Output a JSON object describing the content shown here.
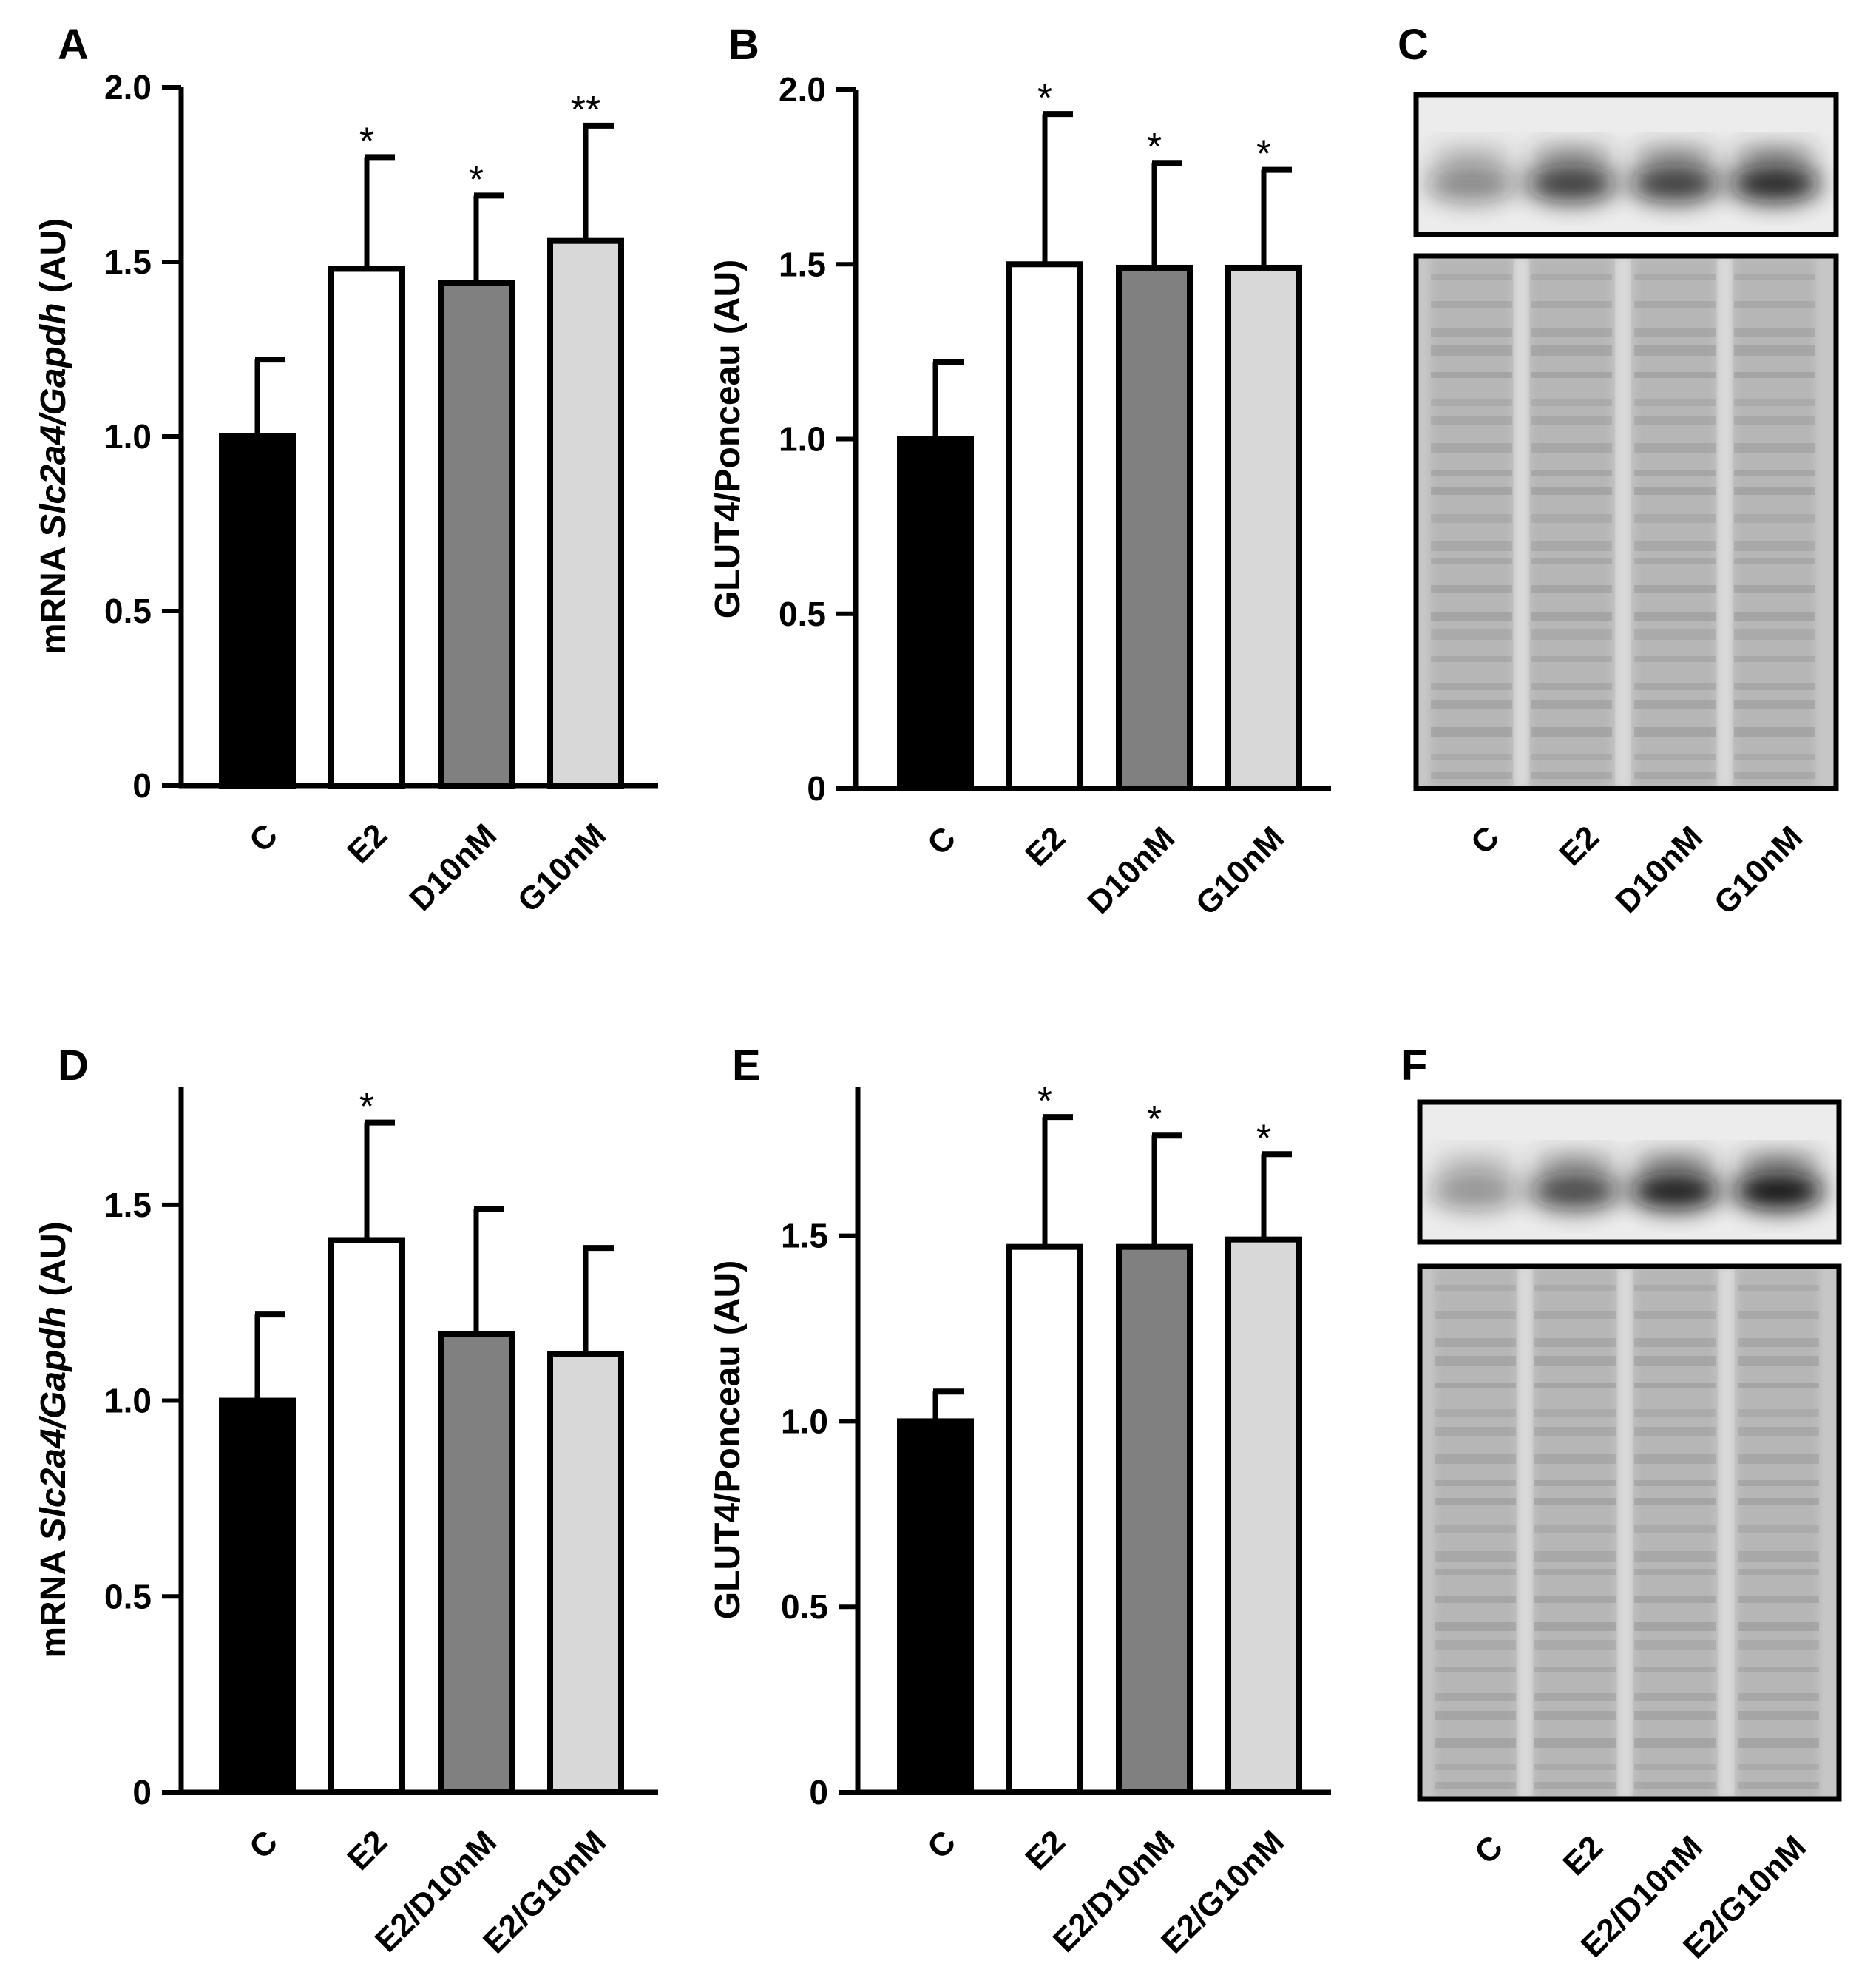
{
  "panels": [
    {
      "letter": "A"
    },
    {
      "letter": "B"
    },
    {
      "letter": "C"
    },
    {
      "letter": "D"
    },
    {
      "letter": "E"
    },
    {
      "letter": "F"
    }
  ],
  "colors": {
    "C": "#000000",
    "E2": "#ffffff",
    "D": "#808080",
    "G": "#d8d8d8",
    "axis": "#000000",
    "blot_band": "#1a1a1a",
    "blot_ponceau": "#bdbdbd"
  },
  "chart_data": [
    {
      "panel": "A",
      "type": "bar",
      "ylabel_parts": [
        "mRNA ",
        "Slc2a4/Gapdh",
        " (AU)"
      ],
      "ylabel_italic": [
        false,
        true,
        false
      ],
      "ylim": [
        0,
        2.0
      ],
      "yticks": [
        0,
        0.5,
        1.0,
        1.5,
        2.0
      ],
      "ytick_labels": [
        "0",
        "0.5",
        "1.0",
        "1.5",
        "2.0"
      ],
      "categories": [
        "C",
        "E2",
        "D10nM",
        "G10nM"
      ],
      "values": [
        1.0,
        1.48,
        1.44,
        1.56
      ],
      "errors": [
        0.22,
        0.32,
        0.25,
        0.33
      ],
      "significance": [
        "",
        "*",
        "*",
        "**"
      ],
      "fills": [
        "#000000",
        "#ffffff",
        "#808080",
        "#d8d8d8"
      ]
    },
    {
      "panel": "B",
      "type": "bar",
      "ylabel_parts": [
        "GLUT4/Ponceau (AU)"
      ],
      "ylabel_italic": [
        false
      ],
      "ylim": [
        0,
        2.0
      ],
      "yticks": [
        0,
        0.5,
        1.0,
        1.5,
        2.0
      ],
      "ytick_labels": [
        "0",
        "0.5",
        "1.0",
        "1.5",
        "2.0"
      ],
      "categories": [
        "C",
        "E2",
        "D10nM",
        "G10nM"
      ],
      "values": [
        1.0,
        1.5,
        1.49,
        1.49
      ],
      "errors": [
        0.22,
        0.43,
        0.3,
        0.28
      ],
      "significance": [
        "",
        "*",
        "*",
        "*"
      ],
      "fills": [
        "#000000",
        "#ffffff",
        "#808080",
        "#d8d8d8"
      ]
    },
    {
      "panel": "D",
      "type": "bar",
      "ylabel_parts": [
        "mRNA ",
        "Slc2a4/Gapdh",
        " (AU)"
      ],
      "ylabel_italic": [
        false,
        true,
        false
      ],
      "ylim": [
        0,
        1.8
      ],
      "yticks": [
        0,
        0.5,
        1.0,
        1.5
      ],
      "ytick_labels": [
        "0",
        "0.5",
        "1.0",
        "1.5"
      ],
      "categories": [
        "C",
        "E2",
        "E2/D10nM",
        "E2/G10nM"
      ],
      "values": [
        1.0,
        1.41,
        1.17,
        1.12
      ],
      "errors": [
        0.22,
        0.3,
        0.32,
        0.27
      ],
      "significance": [
        "",
        "*",
        "",
        ""
      ],
      "fills": [
        "#000000",
        "#ffffff",
        "#808080",
        "#d8d8d8"
      ]
    },
    {
      "panel": "E",
      "type": "bar",
      "ylabel_parts": [
        "GLUT4/Ponceau (AU)"
      ],
      "ylabel_italic": [
        false
      ],
      "ylim": [
        0,
        1.9
      ],
      "yticks": [
        0,
        0.5,
        1.0,
        1.5
      ],
      "ytick_labels": [
        "0",
        "0.5",
        "1.0",
        "1.5"
      ],
      "categories": [
        "C",
        "E2",
        "E2/D10nM",
        "E2/G10nM"
      ],
      "values": [
        1.0,
        1.47,
        1.47,
        1.49
      ],
      "errors": [
        0.08,
        0.35,
        0.3,
        0.23
      ],
      "significance": [
        "",
        "*",
        "*",
        "*"
      ],
      "fills": [
        "#000000",
        "#ffffff",
        "#808080",
        "#d8d8d8"
      ]
    }
  ],
  "blots": [
    {
      "panel": "C",
      "lanes": [
        "C",
        "E2",
        "D10nM",
        "G10nM"
      ],
      "band_intensity": [
        0.45,
        0.8,
        0.8,
        0.9
      ]
    },
    {
      "panel": "F",
      "lanes": [
        "C",
        "E2",
        "E2/D10nM",
        "E2/G10nM"
      ],
      "band_intensity": [
        0.4,
        0.75,
        0.95,
        1.0
      ]
    }
  ]
}
